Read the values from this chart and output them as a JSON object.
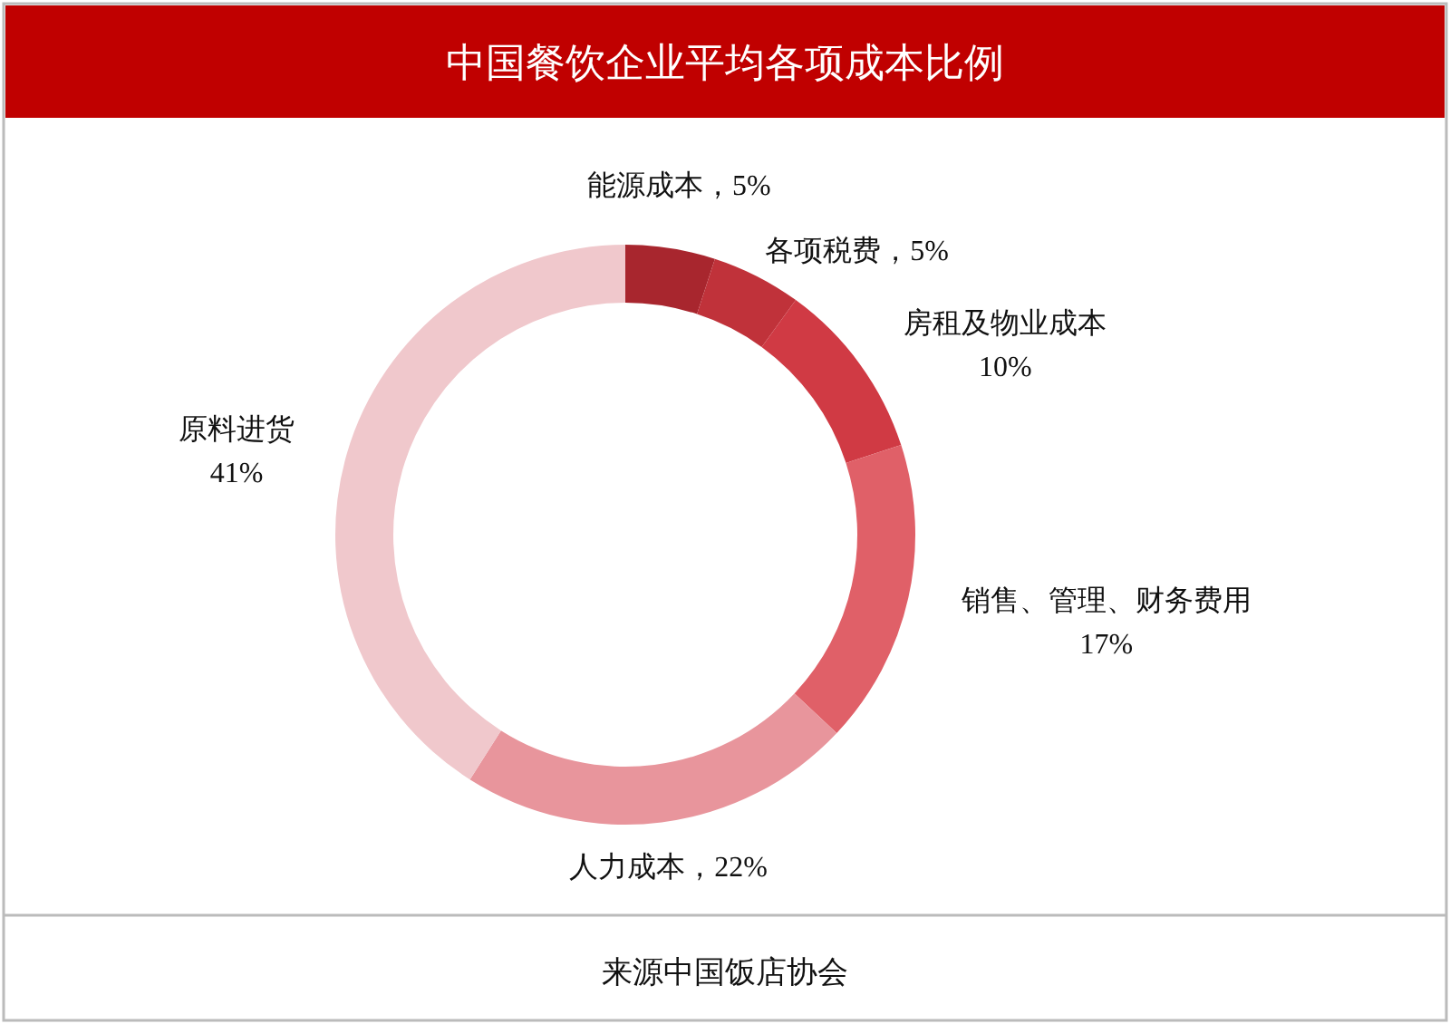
{
  "chart_data": {
    "type": "donut",
    "title": "中国餐饮企业平均各项成本比例",
    "categories": [
      "能源成本",
      "各项税费",
      "房租及物业成本",
      "销售、管理、财务费用",
      "人力成本",
      "原料进货"
    ],
    "values": [
      5,
      5,
      10,
      17,
      22,
      41
    ],
    "colors": [
      "#a8262e",
      "#c0323a",
      "#d03a44",
      "#e06068",
      "#e8959c",
      "#f0c8cc"
    ],
    "value_labels": [
      "，5%",
      "，5%",
      "10%",
      "17%",
      "，22%",
      "41%"
    ],
    "annotations": [
      "来源中国饭店协会"
    ]
  }
}
